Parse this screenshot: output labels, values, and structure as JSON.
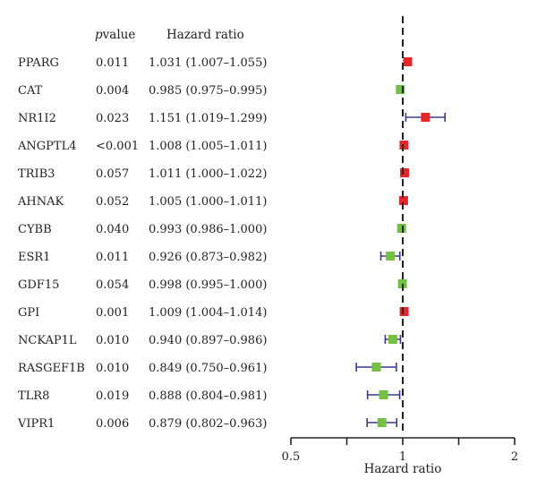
{
  "chart_data": {
    "type": "forest",
    "columns": {
      "pvalue_header": "value",
      "pvalue_header_italic": "p",
      "hr_header": "Hazard ratio"
    },
    "xlabel": "Hazard ratio",
    "xlim": [
      0.5,
      2
    ],
    "x_scale": "log",
    "x_ticks": [
      0.5,
      1,
      2
    ],
    "x_tick_labels": [
      "0.5",
      "1",
      "2"
    ],
    "x_minor_ticks": [
      0.7071,
      1.4142
    ],
    "reference_line": 1,
    "colors": {
      "risk": "#e8262a",
      "protective": "#74c045",
      "ci": "#3b3b8e",
      "ref_line": "#222222"
    },
    "rows": [
      {
        "gene": "PPARG",
        "p": "0.011",
        "hr_text": "1.031 (1.007–1.055)",
        "hr": 1.031,
        "lo": 1.007,
        "hi": 1.055
      },
      {
        "gene": "CAT",
        "p": "0.004",
        "hr_text": "0.985 (0.975–0.995)",
        "hr": 0.985,
        "lo": 0.975,
        "hi": 0.995
      },
      {
        "gene": "NR1I2",
        "p": "0.023",
        "hr_text": "1.151 (1.019–1.299)",
        "hr": 1.151,
        "lo": 1.019,
        "hi": 1.299
      },
      {
        "gene": "ANGPTL4",
        "p": "<0.001",
        "hr_text": "1.008 (1.005–1.011)",
        "hr": 1.008,
        "lo": 1.005,
        "hi": 1.011
      },
      {
        "gene": "TRIB3",
        "p": "0.057",
        "hr_text": "1.011 (1.000–1.022)",
        "hr": 1.011,
        "lo": 1.0,
        "hi": 1.022
      },
      {
        "gene": "AHNAK",
        "p": "0.052",
        "hr_text": "1.005 (1.000–1.011)",
        "hr": 1.005,
        "lo": 1.0,
        "hi": 1.011
      },
      {
        "gene": "CYBB",
        "p": "0.040",
        "hr_text": "0.993 (0.986–1.000)",
        "hr": 0.993,
        "lo": 0.986,
        "hi": 1.0
      },
      {
        "gene": "ESR1",
        "p": "0.011",
        "hr_text": "0.926 (0.873–0.982)",
        "hr": 0.926,
        "lo": 0.873,
        "hi": 0.982
      },
      {
        "gene": "GDF15",
        "p": "0.054",
        "hr_text": "0.998 (0.995–1.000)",
        "hr": 0.998,
        "lo": 0.995,
        "hi": 1.0
      },
      {
        "gene": "GPI",
        "p": "0.001",
        "hr_text": "1.009 (1.004–1.014)",
        "hr": 1.009,
        "lo": 1.004,
        "hi": 1.014
      },
      {
        "gene": "NCKAP1L",
        "p": "0.010",
        "hr_text": "0.940 (0.897–0.986)",
        "hr": 0.94,
        "lo": 0.897,
        "hi": 0.986
      },
      {
        "gene": "RASGEF1B",
        "p": "0.010",
        "hr_text": "0.849 (0.750–0.961)",
        "hr": 0.849,
        "lo": 0.75,
        "hi": 0.961
      },
      {
        "gene": "TLR8",
        "p": "0.019",
        "hr_text": "0.888 (0.804–0.981)",
        "hr": 0.888,
        "lo": 0.804,
        "hi": 0.981
      },
      {
        "gene": "VIPR1",
        "p": "0.006",
        "hr_text": "0.879 (0.802–0.963)",
        "hr": 0.879,
        "lo": 0.802,
        "hi": 0.963
      }
    ]
  }
}
